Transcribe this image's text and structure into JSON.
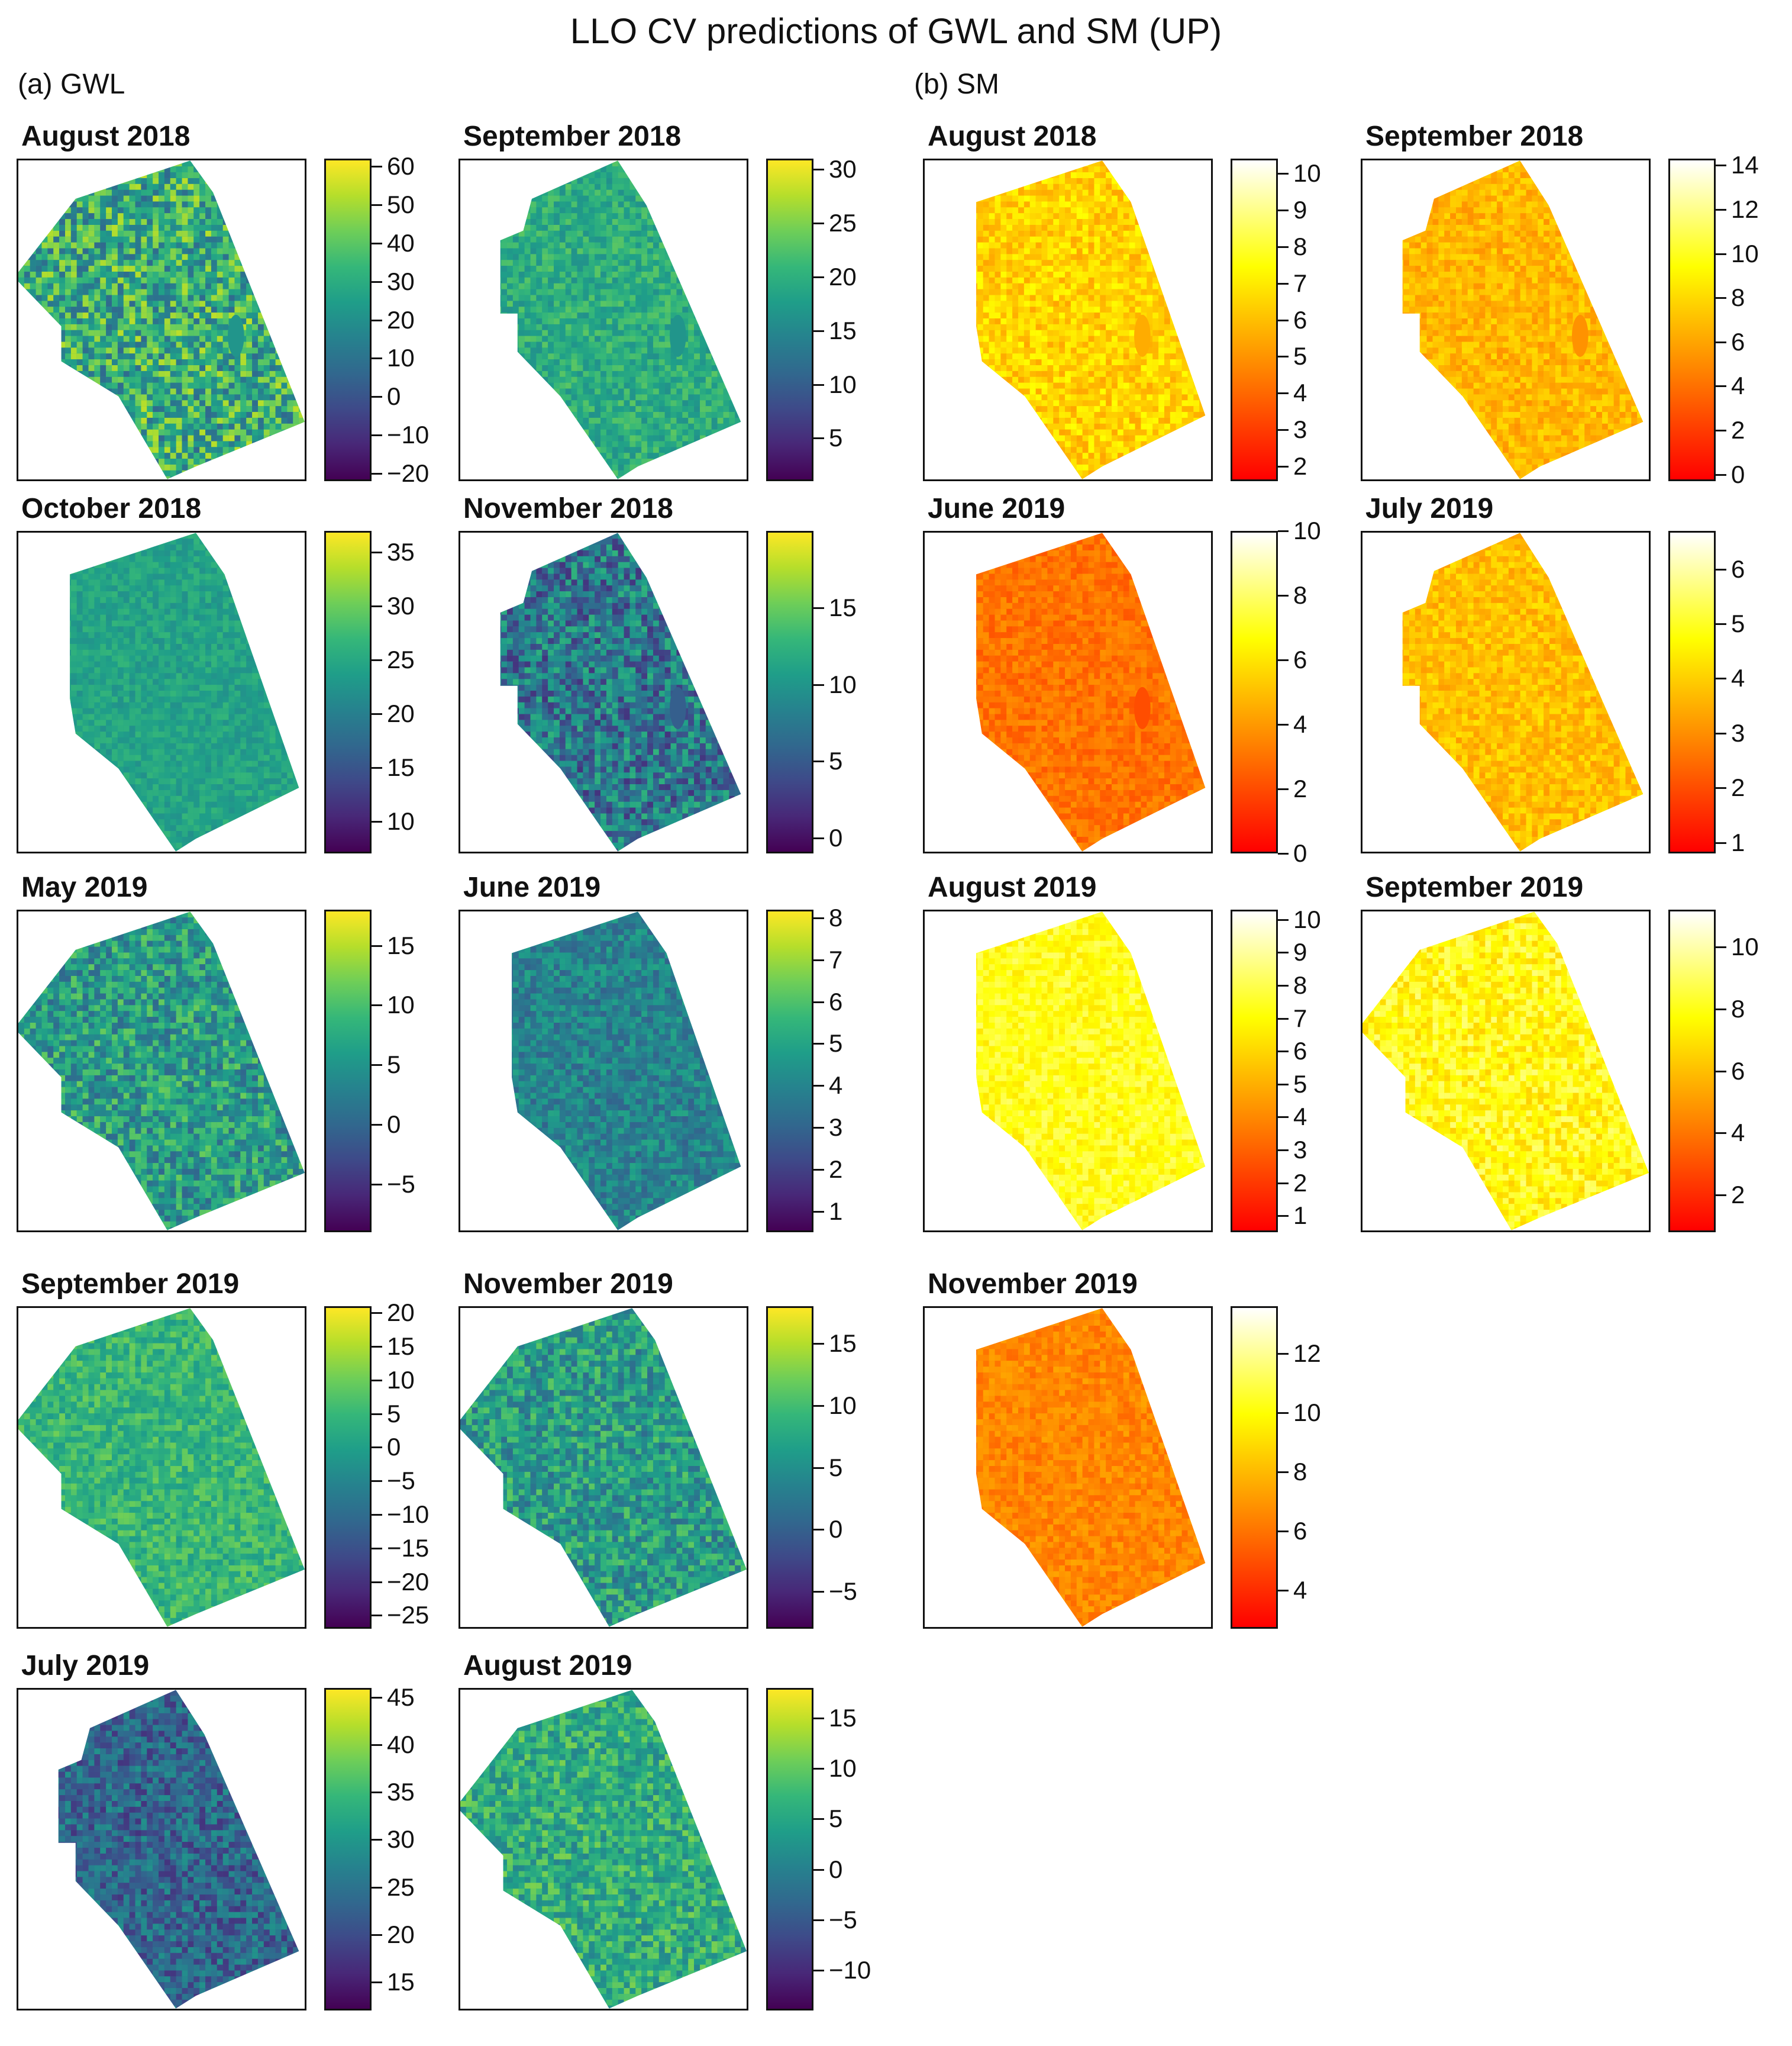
{
  "figure_title": "LLO CV predictions of GWL and SM (UP)",
  "panels": {
    "a": {
      "label": "(a) GWL"
    },
    "b": {
      "label": "(b) SM"
    }
  },
  "colors": {
    "viridis": [
      "#440154",
      "#482878",
      "#3e4a89",
      "#31688e",
      "#26828e",
      "#1f9e89",
      "#35b779",
      "#6ece58",
      "#b5de2b",
      "#fde725"
    ],
    "heat": [
      "#ff0000",
      "#ff4000",
      "#ff8000",
      "#ffbf00",
      "#ffff00",
      "#ffff80",
      "#ffffff"
    ]
  },
  "chart_data": [
    {
      "type": "heatmap",
      "panel": "a",
      "variable": "GWL",
      "title": "August 2018",
      "palette": "viridis",
      "range": [
        -22,
        62
      ],
      "ticks": [
        60,
        50,
        40,
        30,
        20,
        10,
        0,
        -10,
        -20
      ],
      "mean": 0.62,
      "spread": 0.28,
      "shape": "wide",
      "hole": true
    },
    {
      "type": "heatmap",
      "panel": "a",
      "variable": "GWL",
      "title": "September 2018",
      "palette": "viridis",
      "range": [
        1,
        31
      ],
      "ticks": [
        30,
        25,
        20,
        15,
        10,
        5
      ],
      "mean": 0.62,
      "spread": 0.12,
      "shape": "ragged",
      "hole": true
    },
    {
      "type": "heatmap",
      "panel": "a",
      "variable": "GWL",
      "title": "October 2018",
      "palette": "viridis",
      "range": [
        7,
        37
      ],
      "ticks": [
        35,
        30,
        25,
        20,
        15,
        10
      ],
      "mean": 0.58,
      "spread": 0.08,
      "shape": "normal",
      "hole": false
    },
    {
      "type": "heatmap",
      "panel": "a",
      "variable": "GWL",
      "title": "November 2018",
      "palette": "viridis",
      "range": [
        -1,
        20
      ],
      "ticks": [
        15,
        10,
        5,
        0
      ],
      "mean": 0.4,
      "spread": 0.25,
      "shape": "ragged",
      "hole": true
    },
    {
      "type": "heatmap",
      "panel": "a",
      "variable": "GWL",
      "title": "May 2019",
      "palette": "viridis",
      "range": [
        -9,
        18
      ],
      "ticks": [
        15,
        10,
        5,
        0,
        -5
      ],
      "mean": 0.55,
      "spread": 0.22,
      "shape": "wide",
      "hole": false
    },
    {
      "type": "heatmap",
      "panel": "a",
      "variable": "GWL",
      "title": "June 2019",
      "palette": "viridis",
      "range": [
        0.5,
        8.2
      ],
      "ticks": [
        8,
        7,
        6,
        5,
        4,
        3,
        2,
        1
      ],
      "mean": 0.45,
      "spread": 0.14,
      "shape": "normal",
      "hole": false
    },
    {
      "type": "heatmap",
      "panel": "a",
      "variable": "GWL",
      "title": "September 2019",
      "palette": "viridis",
      "range": [
        -27,
        21
      ],
      "ticks": [
        20,
        15,
        10,
        5,
        0,
        -5,
        -10,
        -15,
        -20,
        -25
      ],
      "mean": 0.66,
      "spread": 0.12,
      "shape": "wide",
      "hole": false
    },
    {
      "type": "heatmap",
      "panel": "a",
      "variable": "GWL",
      "title": "November 2019",
      "palette": "viridis",
      "range": [
        -8,
        18
      ],
      "ticks": [
        15,
        10,
        5,
        0,
        -5
      ],
      "mean": 0.55,
      "spread": 0.2,
      "shape": "wide",
      "hole": false
    },
    {
      "type": "heatmap",
      "panel": "a",
      "variable": "GWL",
      "title": "July 2019",
      "palette": "viridis",
      "range": [
        12,
        46
      ],
      "ticks": [
        45,
        40,
        35,
        30,
        25,
        20,
        15
      ],
      "mean": 0.33,
      "spread": 0.18,
      "shape": "ragged",
      "hole": false
    },
    {
      "type": "heatmap",
      "panel": "a",
      "variable": "GWL",
      "title": "August 2019",
      "palette": "viridis",
      "range": [
        -14,
        18
      ],
      "ticks": [
        15,
        10,
        5,
        0,
        -5,
        -10
      ],
      "mean": 0.62,
      "spread": 0.18,
      "shape": "wide",
      "hole": false
    },
    {
      "type": "heatmap",
      "panel": "b",
      "variable": "SM",
      "title": "August 2018",
      "palette": "heat",
      "range": [
        1.6,
        10.4
      ],
      "ticks": [
        10,
        9,
        8,
        7,
        6,
        5,
        4,
        3,
        2
      ],
      "mean": 0.55,
      "spread": 0.12,
      "shape": "normal",
      "hole": true
    },
    {
      "type": "heatmap",
      "panel": "b",
      "variable": "SM",
      "title": "September 2018",
      "palette": "heat",
      "range": [
        -0.3,
        14.3
      ],
      "ticks": [
        14,
        12,
        10,
        8,
        6,
        4,
        2,
        0
      ],
      "mean": 0.48,
      "spread": 0.1,
      "shape": "ragged",
      "hole": true
    },
    {
      "type": "heatmap",
      "panel": "b",
      "variable": "SM",
      "title": "June 2019",
      "palette": "heat",
      "range": [
        0,
        10
      ],
      "ticks": [
        10,
        8,
        6,
        4,
        2,
        0
      ],
      "mean": 0.3,
      "spread": 0.08,
      "shape": "normal",
      "hole": true
    },
    {
      "type": "heatmap",
      "panel": "b",
      "variable": "SM",
      "title": "July 2019",
      "palette": "heat",
      "range": [
        0.8,
        6.7
      ],
      "ticks": [
        6,
        5,
        4,
        3,
        2,
        1
      ],
      "mean": 0.5,
      "spread": 0.1,
      "shape": "ragged",
      "hole": false
    },
    {
      "type": "heatmap",
      "panel": "b",
      "variable": "SM",
      "title": "August 2019",
      "palette": "heat",
      "range": [
        0.5,
        10.3
      ],
      "ticks": [
        10,
        9,
        8,
        7,
        6,
        5,
        4,
        3,
        2,
        1
      ],
      "mean": 0.7,
      "spread": 0.1,
      "shape": "normal",
      "hole": false
    },
    {
      "type": "heatmap",
      "panel": "b",
      "variable": "SM",
      "title": "September 2019",
      "palette": "heat",
      "range": [
        0.8,
        11.2
      ],
      "ticks": [
        10,
        8,
        6,
        4,
        2
      ],
      "mean": 0.68,
      "spread": 0.14,
      "shape": "wide",
      "hole": false
    },
    {
      "type": "heatmap",
      "panel": "b",
      "variable": "SM",
      "title": "November 2019",
      "palette": "heat",
      "range": [
        2.7,
        13.6
      ],
      "ticks": [
        12,
        10,
        8,
        6,
        4
      ],
      "mean": 0.35,
      "spread": 0.08,
      "shape": "normal",
      "hole": false
    }
  ]
}
